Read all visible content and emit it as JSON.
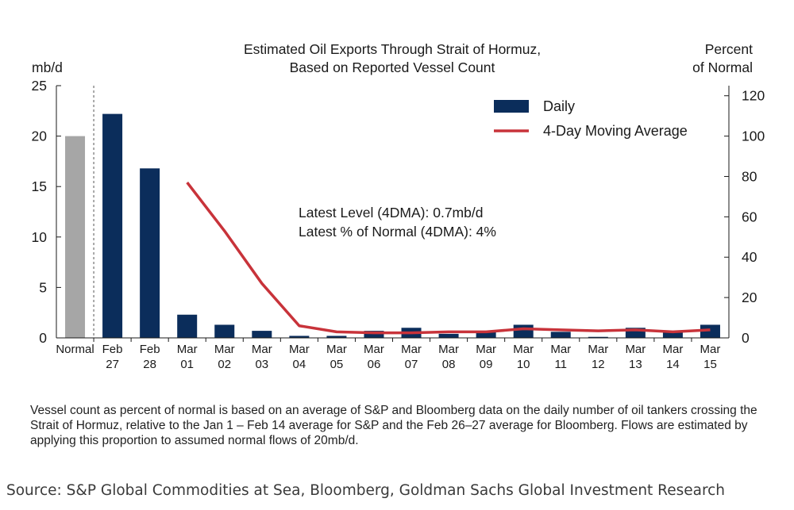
{
  "chart_data": {
    "type": "bar",
    "title_lines": [
      "Estimated Oil Exports Through Strait of Hormuz,",
      "Based on Reported Vessel Count"
    ],
    "y_left": {
      "label": "mb/d",
      "ylim": [
        0,
        25
      ],
      "ticks": [
        0,
        5,
        10,
        15,
        20,
        25
      ]
    },
    "y_right": {
      "label_lines": [
        "Percent",
        "of Normal"
      ],
      "ylim": [
        0,
        125
      ],
      "ticks": [
        0,
        20,
        40,
        60,
        80,
        100,
        120
      ]
    },
    "categories": [
      [
        "Normal"
      ],
      [
        "Feb",
        "27"
      ],
      [
        "Feb",
        "28"
      ],
      [
        "Mar",
        "01"
      ],
      [
        "Mar",
        "02"
      ],
      [
        "Mar",
        "03"
      ],
      [
        "Mar",
        "04"
      ],
      [
        "Mar",
        "05"
      ],
      [
        "Mar",
        "06"
      ],
      [
        "Mar",
        "07"
      ],
      [
        "Mar",
        "08"
      ],
      [
        "Mar",
        "09"
      ],
      [
        "Mar",
        "10"
      ],
      [
        "Mar",
        "11"
      ],
      [
        "Mar",
        "12"
      ],
      [
        "Mar",
        "13"
      ],
      [
        "Mar",
        "14"
      ],
      [
        "Mar",
        "15"
      ]
    ],
    "series": [
      {
        "name": "Daily",
        "type": "bar",
        "axis": "left",
        "color": "#0b2d5b",
        "normal_color": "#a6a6a6",
        "values": [
          20,
          22.2,
          16.8,
          2.3,
          1.3,
          0.7,
          0.2,
          0.2,
          0.7,
          1.0,
          0.4,
          0.6,
          1.3,
          0.6,
          0.1,
          1.0,
          0.6,
          1.3
        ]
      },
      {
        "name": "4-Day Moving Average",
        "type": "line",
        "axis": "right",
        "color": "#c8333a",
        "values": [
          null,
          null,
          null,
          77,
          53,
          27,
          6,
          3,
          2.5,
          2.5,
          3,
          3,
          4.5,
          4,
          3.5,
          4,
          3,
          4
        ]
      }
    ],
    "annotation_lines": [
      "Latest Level (4DMA): 0.7mb/d",
      "Latest % of Normal (4DMA): 4%"
    ],
    "legend_position": "top-right"
  },
  "footnote": "Vessel count as percent of normal is based on an average of S&P and Bloomberg data on the daily number of oil tankers crossing the Strait of Hormuz, relative to the Jan 1 – Feb 14 average for S&P and the Feb 26–27 average for Bloomberg. Flows are estimated by applying this proportion to assumed normal flows of 20mb/d.",
  "source": "Source: S&P Global Commodities at Sea, Bloomberg, Goldman Sachs Global Investment Research"
}
